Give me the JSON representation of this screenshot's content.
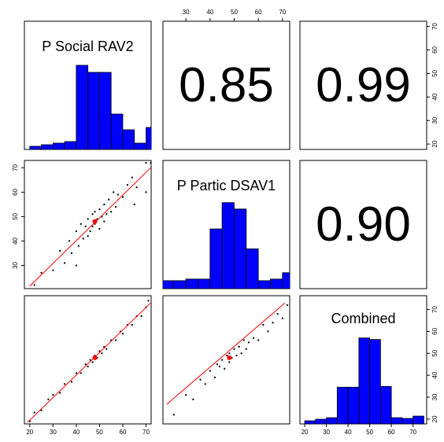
{
  "chart_data": {
    "type": "pairs",
    "variables": [
      {
        "name": "P Social RAV2",
        "lim": [
          17.7,
          72.2
        ],
        "ticks": [
          20,
          30,
          40,
          50,
          60,
          70
        ],
        "hist": {
          "bins": [
            20,
            25,
            30,
            35,
            40,
            45,
            50,
            55,
            60,
            65,
            70,
            75
          ],
          "counts": [
            4,
            6,
            8,
            10,
            107,
            98,
            98,
            45,
            25,
            8,
            28
          ],
          "ylim": [
            0,
            163
          ]
        }
      },
      {
        "name": "P Partic DSAV1",
        "lim": [
          20.5,
          73
        ],
        "ticks": [
          30,
          40,
          50,
          60,
          70
        ],
        "hist": {
          "bins": [
            20,
            25,
            30,
            35,
            40,
            45,
            50,
            55,
            60,
            65,
            70,
            75
          ],
          "counts": [
            10,
            10,
            12,
            12,
            75,
            108,
            100,
            50,
            10,
            12,
            20
          ],
          "ylim": [
            0,
            161
          ]
        }
      },
      {
        "name": "Combined",
        "lim": [
          17.8,
          76.3
        ],
        "ticks": [
          20,
          30,
          40,
          50,
          60,
          70
        ],
        "hist": {
          "bins": [
            20,
            25,
            30,
            35,
            40,
            45,
            50,
            55,
            60,
            65,
            70,
            75
          ],
          "counts": [
            4,
            6,
            8,
            47,
            47,
            110,
            108,
            48,
            8,
            7,
            10
          ],
          "ylim": [
            0,
            164
          ]
        }
      }
    ],
    "correlation": {
      "values": [
        0.85,
        0.99,
        0.9
      ],
      "value_labels": [
        "0.85",
        "0.99",
        "0.90"
      ]
    },
    "scatters": [
      {
        "x": [
          30,
          33,
          35,
          37,
          38,
          40,
          41,
          42,
          43,
          44,
          45,
          45,
          46,
          47,
          47,
          48,
          48,
          49,
          50,
          50,
          51,
          52,
          52,
          53,
          54,
          55,
          56,
          57,
          58,
          60,
          62,
          64,
          66,
          70,
          70,
          72,
          25,
          22,
          65,
          40
        ],
        "y": [
          28,
          36,
          31,
          40,
          35,
          44,
          38,
          47,
          41,
          46,
          49,
          42,
          44,
          51,
          46,
          47,
          52,
          49,
          53,
          45,
          50,
          55,
          48,
          51,
          57,
          52,
          60,
          54,
          59,
          58,
          63,
          66,
          62,
          72,
          60,
          72,
          27,
          22,
          55,
          30
        ],
        "mean": {
          "x": 48,
          "y": 48
        },
        "fit": {
          "x": [
            20,
            72
          ],
          "y": [
            21.5,
            70
          ]
        }
      },
      {
        "x": [
          20,
          22,
          25,
          28,
          30,
          33,
          35,
          38,
          40,
          42,
          44,
          45,
          46,
          47,
          48,
          49,
          50,
          51,
          52,
          53,
          55,
          57,
          59,
          60,
          62,
          64,
          66,
          68,
          70,
          71
        ],
        "y": [
          19,
          23,
          24,
          29,
          31,
          32,
          36,
          37,
          41,
          41,
          45,
          44,
          47,
          46,
          49,
          48,
          51,
          50,
          53,
          52,
          56,
          56,
          60,
          59,
          63,
          63,
          67,
          67,
          71,
          74
        ],
        "mean": {
          "x": 48,
          "y": 48
        },
        "fit": {
          "x": [
            19,
            72
          ],
          "y": [
            18.5,
            73
          ]
        }
      },
      {
        "x": [
          25,
          30,
          33,
          36,
          38,
          40,
          42,
          43,
          44,
          45,
          46,
          47,
          48,
          48,
          49,
          50,
          51,
          52,
          53,
          54,
          55,
          56,
          58,
          60,
          62,
          64,
          66,
          68,
          70,
          72
        ],
        "y": [
          22,
          31,
          29,
          38,
          36,
          42,
          39,
          45,
          44,
          47,
          43,
          49,
          46,
          50,
          48,
          52,
          49,
          53,
          50,
          56,
          52,
          55,
          57,
          56,
          63,
          60,
          64,
          68,
          66,
          72
        ],
        "mean": {
          "x": 48,
          "y": 48
        },
        "fit": {
          "x": [
            22,
            71
          ],
          "y": [
            26.7,
            73
          ]
        }
      }
    ]
  }
}
